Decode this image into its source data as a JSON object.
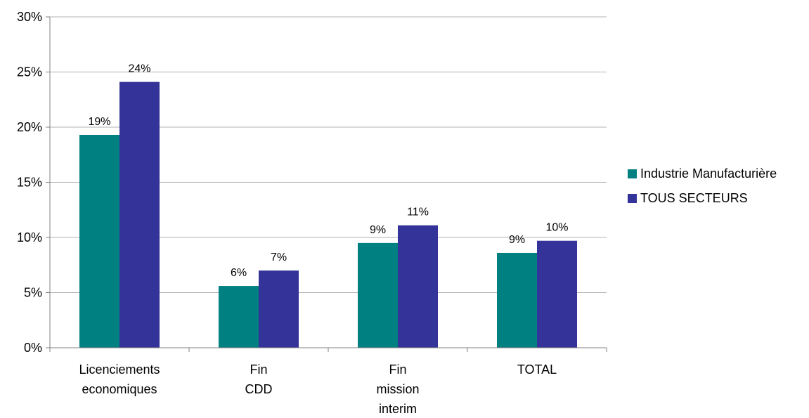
{
  "chart_data": {
    "type": "bar",
    "title": "",
    "xlabel": "",
    "ylabel": "",
    "categories": [
      [
        "Licenciements",
        "economiques"
      ],
      [
        "Fin",
        "CDD"
      ],
      [
        "Fin",
        "mission",
        "interim"
      ],
      [
        "TOTAL"
      ]
    ],
    "ylim": [
      0,
      30
    ],
    "yticks": [
      0,
      5,
      10,
      15,
      20,
      25,
      30
    ],
    "ytick_labels": [
      "0%",
      "5%",
      "10%",
      "15%",
      "20%",
      "25%",
      "30%"
    ],
    "grid": true,
    "legend_position": "right",
    "series": [
      {
        "name": "Industrie Manufacturière",
        "color": "#008080",
        "values": [
          19.3,
          5.6,
          9.5,
          8.6
        ],
        "labels": [
          "19%",
          "6%",
          "9%",
          "9%"
        ]
      },
      {
        "name": "TOUS SECTEURS",
        "color": "#333399",
        "values": [
          24.1,
          7.0,
          11.1,
          9.7
        ],
        "labels": [
          "24%",
          "7%",
          "11%",
          "10%"
        ]
      }
    ]
  }
}
